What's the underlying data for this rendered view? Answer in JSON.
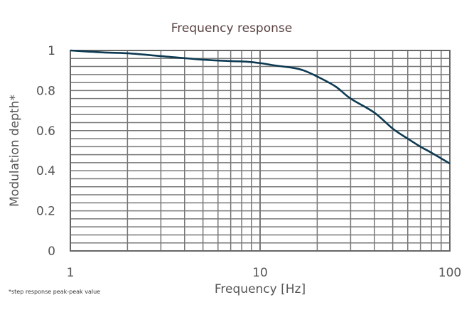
{
  "chart_data": {
    "type": "line",
    "title": "Frequency response",
    "xlabel": "Frequency [Hz]",
    "ylabel": "Modulation depth*",
    "footnote": "*step response peak-peak value",
    "x_scale": "log",
    "xlim": [
      1,
      100
    ],
    "ylim": [
      0,
      1
    ],
    "x_ticks": [
      {
        "v": 1,
        "label": "1"
      },
      {
        "v": 10,
        "label": "10"
      },
      {
        "v": 100,
        "label": "100"
      }
    ],
    "y_ticks": [
      {
        "v": 0,
        "label": "0"
      },
      {
        "v": 0.2,
        "label": "0.2"
      },
      {
        "v": 0.4,
        "label": "0.4"
      },
      {
        "v": 0.6,
        "label": "0.6"
      },
      {
        "v": 0.8,
        "label": "0.8"
      },
      {
        "v": 1,
        "label": "1"
      }
    ],
    "grid": true,
    "y_minor_step": 0.04,
    "line_color": "#0d3a52",
    "grid_color": "#777777",
    "series": [
      {
        "x": [
          1,
          1.5,
          2,
          3,
          5,
          7,
          8.5,
          10,
          12,
          15,
          17,
          20,
          25,
          30,
          40,
          50,
          60,
          70,
          80,
          100
        ],
        "y": [
          1.0,
          0.99,
          0.986,
          0.972,
          0.954,
          0.947,
          0.944,
          0.937,
          0.925,
          0.913,
          0.9,
          0.87,
          0.82,
          0.76,
          0.69,
          0.61,
          0.56,
          0.52,
          0.49,
          0.436
        ]
      }
    ]
  }
}
